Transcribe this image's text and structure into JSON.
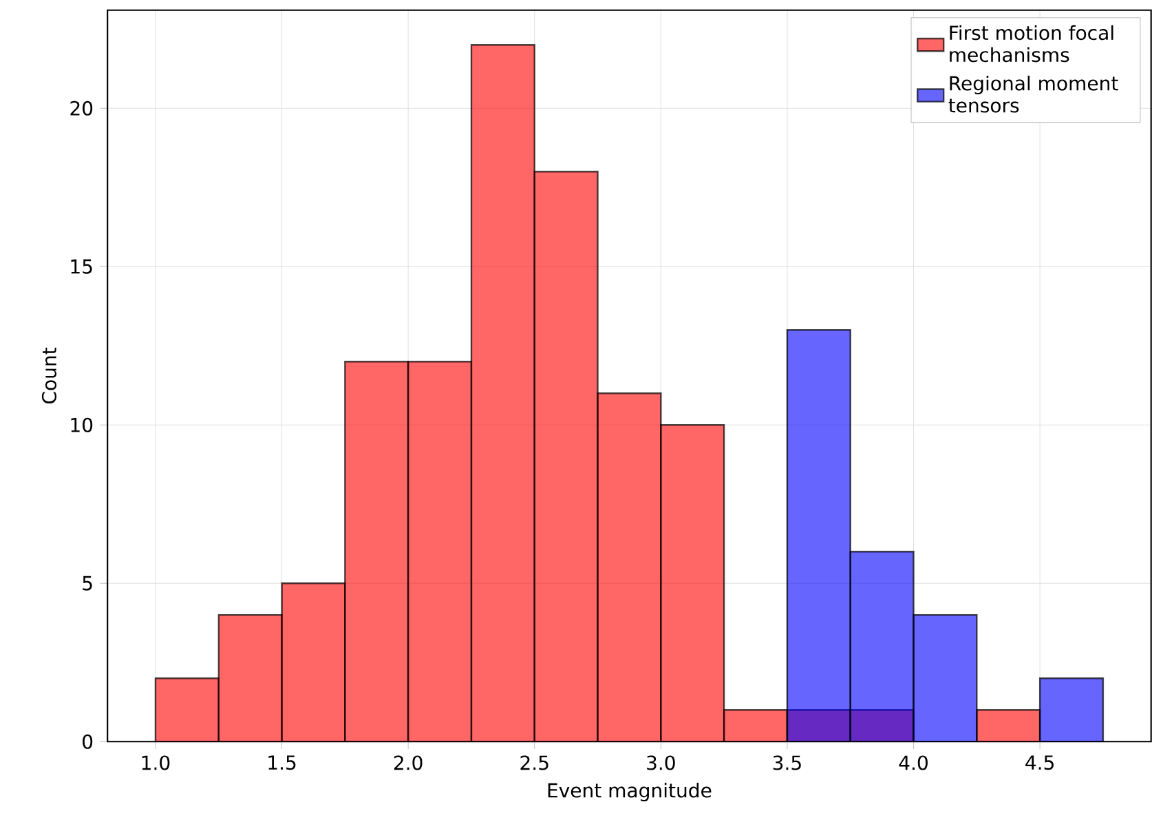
{
  "chart_data": {
    "type": "histogram",
    "xlabel": "Event magnitude",
    "ylabel": "Count",
    "series": [
      {
        "name": "First motion focal mechanisms",
        "color": "#ff0000",
        "values": [
          2,
          4,
          5,
          12,
          12,
          22,
          18,
          11,
          10,
          1,
          1,
          1,
          0,
          1,
          0
        ]
      },
      {
        "name": "Regional moment tensors",
        "color": "#0000ff",
        "values": [
          0,
          0,
          0,
          0,
          0,
          0,
          0,
          0,
          0,
          0,
          13,
          6,
          4,
          0,
          2
        ]
      }
    ],
    "bins": [
      1.0,
      1.25,
      1.5,
      1.75,
      2.0,
      2.25,
      2.5,
      2.75,
      3.0,
      3.25,
      3.5,
      3.75,
      4.0,
      4.25,
      4.5,
      4.75
    ],
    "xlim": [
      0.81,
      4.94
    ],
    "ylim": [
      0,
      23.1
    ],
    "xticks": [
      {
        "value": 1.0,
        "label": "1.0"
      },
      {
        "value": 1.5,
        "label": "1.5"
      },
      {
        "value": 2.0,
        "label": "2.0"
      },
      {
        "value": 2.5,
        "label": "2.5"
      },
      {
        "value": 3.0,
        "label": "3.0"
      },
      {
        "value": 3.5,
        "label": "3.5"
      },
      {
        "value": 4.0,
        "label": "4.0"
      },
      {
        "value": 4.5,
        "label": "4.5"
      }
    ],
    "yticks": [
      0,
      5,
      10,
      15,
      20
    ],
    "grid": true,
    "legend": "top right"
  }
}
